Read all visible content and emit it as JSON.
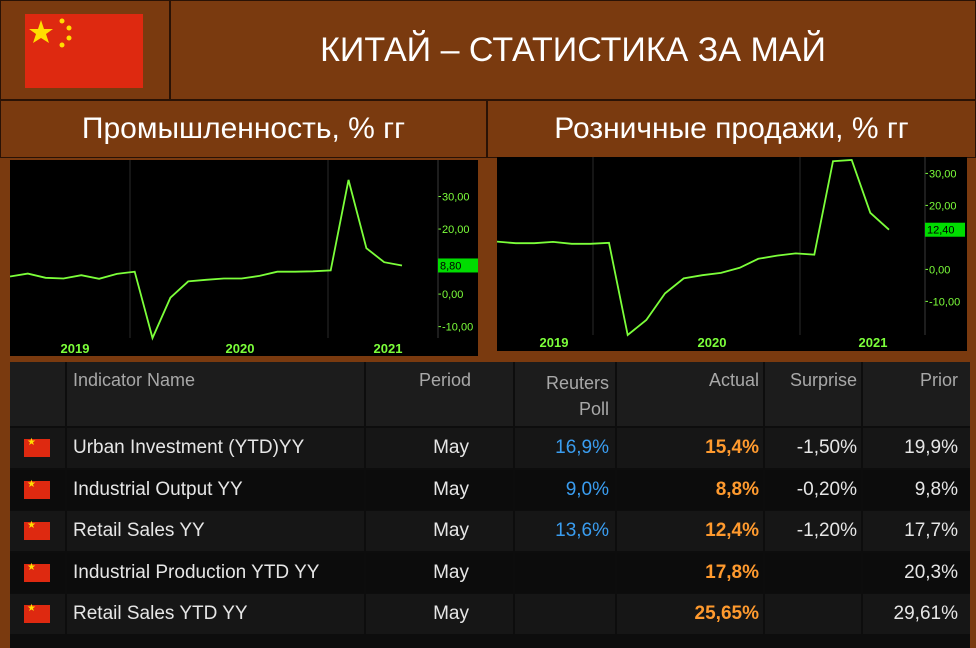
{
  "header": {
    "title": "КИТАЙ – СТАТИСТИКА ЗА МАЙ"
  },
  "colors": {
    "background": "#7a3a0f",
    "line": "#7cff3a",
    "axis_text": "#7cff3a",
    "marker_bg": "#00dd00",
    "blue": "#3a9df0",
    "orange": "#ff9a2e",
    "flag_red": "#de2910",
    "flag_yellow": "#ffde00"
  },
  "chart_data": [
    {
      "type": "line",
      "title": "Промышленность, % гг",
      "x_ticks": [
        "2019",
        "2020",
        "2021"
      ],
      "y_ticks": [
        "30,00",
        "20,00",
        "0,00",
        "-10,00"
      ],
      "last_value_label": "8,80",
      "ylim": [
        -13.5,
        40
      ],
      "values": [
        5.4,
        6.3,
        5.0,
        4.8,
        5.8,
        4.7,
        6.2,
        6.9,
        -13.5,
        -1.1,
        3.9,
        4.4,
        4.8,
        4.8,
        5.6,
        6.9,
        6.9,
        7.0,
        7.3,
        35.1,
        14.1,
        9.8,
        8.8
      ]
    },
    {
      "type": "line",
      "title": "Розничные продажи, % гг",
      "x_ticks": [
        "2019",
        "2020",
        "2021"
      ],
      "y_ticks": [
        "30,00",
        "20,00",
        "0,00",
        "-10,00"
      ],
      "last_value_label": "12,40",
      "ylim": [
        -20.5,
        34.5
      ],
      "values": [
        8.7,
        8.2,
        8.2,
        8.6,
        8.0,
        8.0,
        8.3,
        -20.5,
        -15.8,
        -7.5,
        -2.8,
        -1.8,
        -1.1,
        0.5,
        3.3,
        4.3,
        5.0,
        4.6,
        33.8,
        34.2,
        17.7,
        12.4
      ]
    }
  ],
  "table": {
    "headers": [
      "Indicator Name",
      "Period",
      "Reuters Poll",
      "Actual",
      "Surprise",
      "Prior"
    ],
    "rows": [
      {
        "name": "Urban Investment (YTD)YY",
        "period": "May",
        "poll": "16,9%",
        "actual": "15,4%",
        "surprise": "-1,50%",
        "prior": "19,9%"
      },
      {
        "name": "Industrial Output YY",
        "period": "May",
        "poll": "9,0%",
        "actual": "8,8%",
        "surprise": "-0,20%",
        "prior": "9,8%"
      },
      {
        "name": "Retail Sales YY",
        "period": "May",
        "poll": "13,6%",
        "actual": "12,4%",
        "surprise": "-1,20%",
        "prior": "17,7%"
      },
      {
        "name": "Industrial Production YTD YY",
        "period": "May",
        "poll": "",
        "actual": "17,8%",
        "surprise": "",
        "prior": "20,3%"
      },
      {
        "name": "Retail Sales YTD YY",
        "period": "May",
        "poll": "",
        "actual": "25,65%",
        "surprise": "",
        "prior": "29,61%"
      }
    ]
  }
}
